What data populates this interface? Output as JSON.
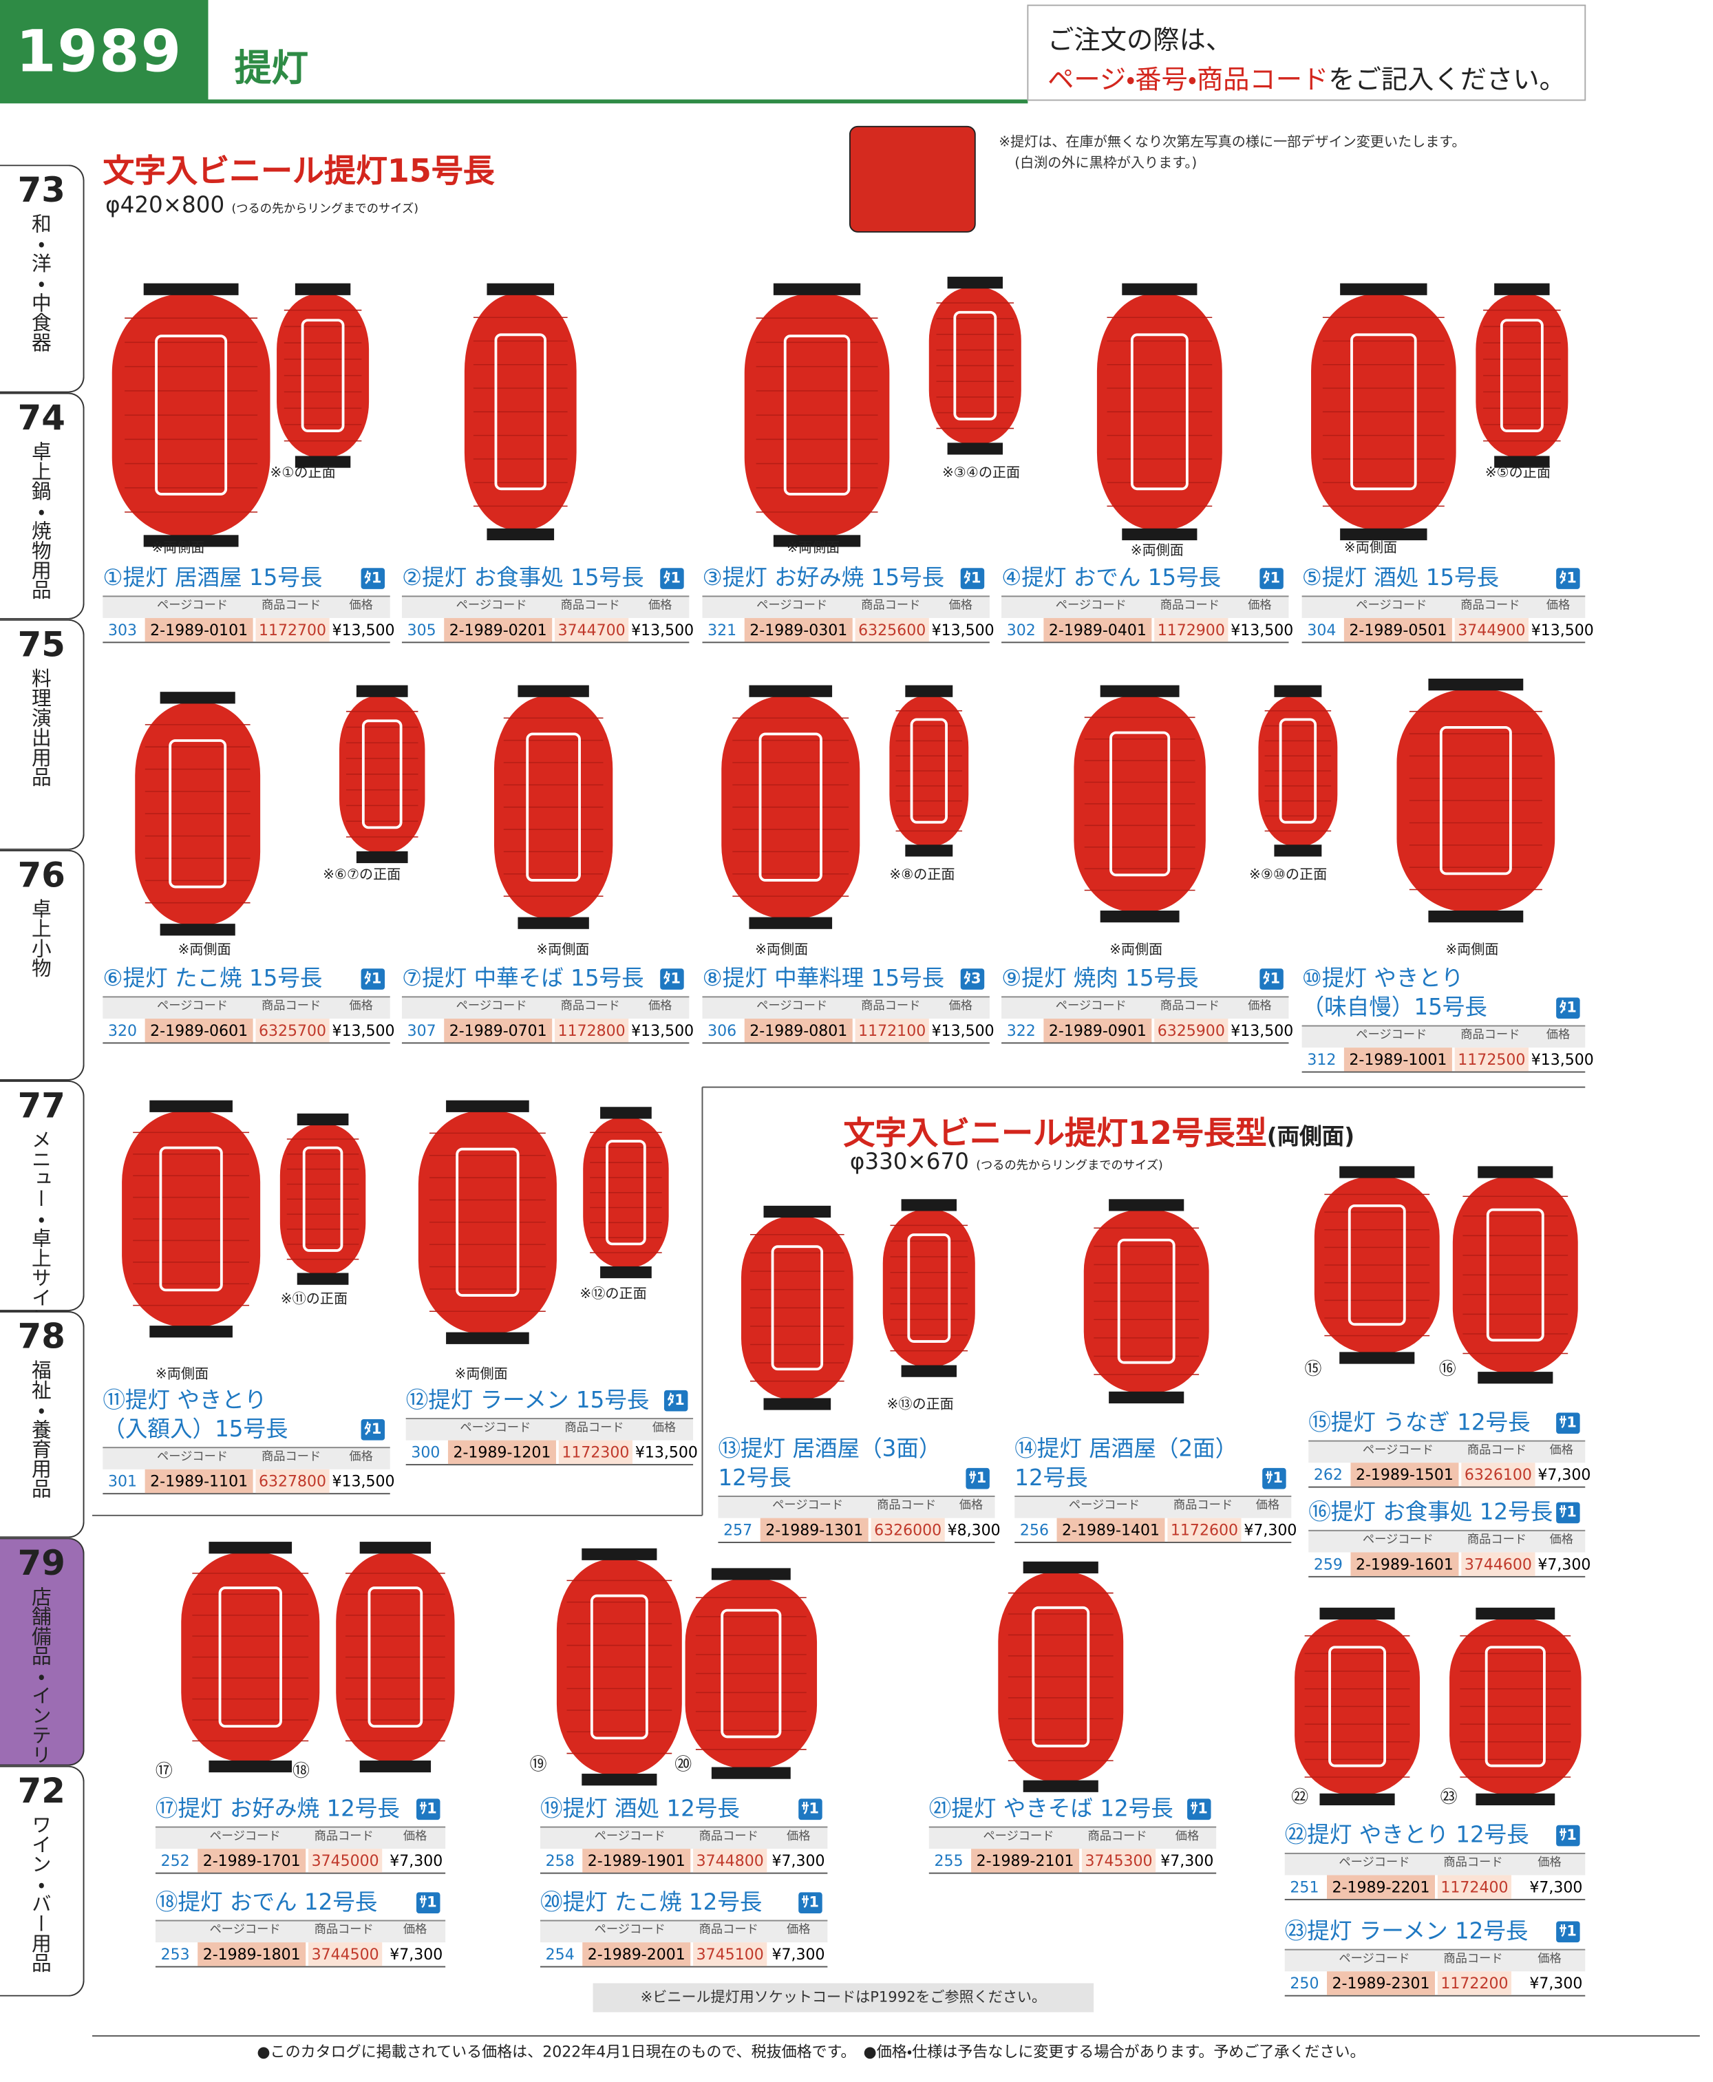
{
  "header": {
    "page_number": "1989",
    "title": "提灯",
    "notice_line1": "ご注文の際は、",
    "notice_emphasis": "ページ・番号・商品コード",
    "notice_rest": "をご記入ください。"
  },
  "side_tabs": [
    {
      "number": "73",
      "label": "和・洋・中食器"
    },
    {
      "number": "74",
      "label": "卓上鍋・焼物用品"
    },
    {
      "number": "75",
      "label": "料理演出用品"
    },
    {
      "number": "76",
      "label": "卓上小物"
    },
    {
      "number": "77",
      "label": "メニュー・卓上サイン"
    },
    {
      "number": "78",
      "label": "福祉・養育用品"
    },
    {
      "number": "79",
      "label": "店舗備品・インテリア"
    },
    {
      "number": "72",
      "label": "ワイン・バー用品"
    }
  ],
  "section1": {
    "title": "文字入ビニール提灯15号長",
    "size": "φ420×800",
    "size_note": "(つるの先からリングまでのサイズ)",
    "note_line1": "※提灯は、在庫が無くなり次第左写真の様に一部デザイン変更いたします。",
    "note_line2": "(白渕の外に黒枠が入ります。)"
  },
  "section2": {
    "title": "文字入ビニール提灯12号長型",
    "title_suffix": "(両側面)",
    "size": "φ330×670",
    "size_note": "(つるの先からリングまでのサイズ)"
  },
  "table_headers": [
    "ページコード",
    "商品コード",
    "価格"
  ],
  "products": [
    {
      "name": [
        "①提灯 居酒屋 15号長"
      ],
      "badge": "ﾀ1",
      "page": "303",
      "code": "2-1989-0101",
      "product_code": "1172700",
      "price": "¥13,500",
      "notes": [
        "※両側面",
        "※①の正面"
      ]
    },
    {
      "name": [
        "②提灯 お食事処 15号長"
      ],
      "badge": "ﾀ1",
      "page": "305",
      "code": "2-1989-0201",
      "product_code": "3744700",
      "price": "¥13,500",
      "notes": []
    },
    {
      "name": [
        "③提灯 お好み焼 15号長"
      ],
      "badge": "ﾀ1",
      "page": "321",
      "code": "2-1989-0301",
      "product_code": "6325600",
      "price": "¥13,500",
      "notes": [
        "※両側面",
        "※③④の正面"
      ]
    },
    {
      "name": [
        "④提灯 おでん 15号長"
      ],
      "badge": "ﾀ1",
      "page": "302",
      "code": "2-1989-0401",
      "product_code": "1172900",
      "price": "¥13,500",
      "notes": [
        "※両側面"
      ]
    },
    {
      "name": [
        "⑤提灯 酒処 15号長"
      ],
      "badge": "ﾀ1",
      "page": "304",
      "code": "2-1989-0501",
      "product_code": "3744900",
      "price": "¥13,500",
      "notes": [
        "※両側面",
        "※⑤の正面"
      ]
    },
    {
      "name": [
        "⑥提灯 たこ焼 15号長"
      ],
      "badge": "ﾀ1",
      "page": "320",
      "code": "2-1989-0601",
      "product_code": "6325700",
      "price": "¥13,500",
      "notes": [
        "※両側面",
        "※⑥⑦の正面"
      ]
    },
    {
      "name": [
        "⑦提灯 中華そば 15号長"
      ],
      "badge": "ﾀ1",
      "page": "307",
      "code": "2-1989-0701",
      "product_code": "1172800",
      "price": "¥13,500",
      "notes": [
        "※両側面"
      ]
    },
    {
      "name": [
        "⑧提灯 中華料理 15号長"
      ],
      "badge": "ﾀ3",
      "page": "306",
      "code": "2-1989-0801",
      "product_code": "1172100",
      "price": "¥13,500",
      "notes": [
        "※両側面",
        "※⑧の正面"
      ]
    },
    {
      "name": [
        "⑨提灯 焼肉 15号長"
      ],
      "badge": "ﾀ1",
      "page": "322",
      "code": "2-1989-0901",
      "product_code": "6325900",
      "price": "¥13,500",
      "notes": [
        "※両側面",
        "※⑨⑩の正面"
      ]
    },
    {
      "name": [
        "⑩提灯 やきとり",
        "（味自慢）15号長"
      ],
      "badge": "ﾀ1",
      "page": "312",
      "code": "2-1989-1001",
      "product_code": "1172500",
      "price": "¥13,500",
      "notes": [
        "※両側面"
      ]
    },
    {
      "name": [
        "⑪提灯 やきとり",
        "（入額入）15号長"
      ],
      "badge": "ﾀ1",
      "page": "301",
      "code": "2-1989-1101",
      "product_code": "6327800",
      "price": "¥13,500",
      "notes": [
        "※両側面",
        "※⑪の正面"
      ]
    },
    {
      "name": [
        "⑫提灯 ラーメン 15号長"
      ],
      "badge": "ﾀ1",
      "page": "300",
      "code": "2-1989-1201",
      "product_code": "1172300",
      "price": "¥13,500",
      "notes": [
        "※両側面",
        "※⑫の正面"
      ]
    },
    {
      "name": [
        "⑬提灯 居酒屋（3面）",
        "12号長"
      ],
      "badge": "ｻ1",
      "page": "257",
      "code": "2-1989-1301",
      "product_code": "6326000",
      "price": "¥8,300",
      "notes": [
        "※⑬の正面"
      ]
    },
    {
      "name": [
        "⑭提灯 居酒屋（2面）",
        "12号長"
      ],
      "badge": "ｻ1",
      "page": "256",
      "code": "2-1989-1401",
      "product_code": "1172600",
      "price": "¥7,300",
      "notes": []
    },
    {
      "name": [
        "⑮提灯 うなぎ 12号長"
      ],
      "badge": "ｻ1",
      "page": "262",
      "code": "2-1989-1501",
      "product_code": "6326100",
      "price": "¥7,300",
      "notes": [],
      "photo_label": "⑮"
    },
    {
      "name": [
        "⑯提灯 お食事処 12号長"
      ],
      "badge": "ｻ1",
      "page": "259",
      "code": "2-1989-1601",
      "product_code": "3744600",
      "price": "¥7,300",
      "notes": [],
      "photo_label": "⑯"
    },
    {
      "name": [
        "⑰提灯 お好み焼 12号長"
      ],
      "badge": "ｻ1",
      "page": "252",
      "code": "2-1989-1701",
      "product_code": "3745000",
      "price": "¥7,300",
      "notes": [],
      "photo_label": "⑰"
    },
    {
      "name": [
        "⑱提灯 おでん 12号長"
      ],
      "badge": "ｻ1",
      "page": "253",
      "code": "2-1989-1801",
      "product_code": "3744500",
      "price": "¥7,300",
      "notes": [],
      "photo_label": "⑱"
    },
    {
      "name": [
        "⑲提灯 酒処 12号長"
      ],
      "badge": "ｻ1",
      "page": "258",
      "code": "2-1989-1901",
      "product_code": "3744800",
      "price": "¥7,300",
      "notes": [],
      "photo_label": "⑲"
    },
    {
      "name": [
        "⑳提灯 たこ焼 12号長"
      ],
      "badge": "ｻ1",
      "page": "254",
      "code": "2-1989-2001",
      "product_code": "3745100",
      "price": "¥7,300",
      "notes": [],
      "photo_label": "⑳"
    },
    {
      "name": [
        "㉑提灯 やきそば 12号長"
      ],
      "badge": "ｻ1",
      "page": "255",
      "code": "2-1989-2101",
      "product_code": "3745300",
      "price": "¥7,300",
      "notes": []
    },
    {
      "name": [
        "㉒提灯 やきとり 12号長"
      ],
      "badge": "ｻ1",
      "page": "251",
      "code": "2-1989-2201",
      "product_code": "1172400",
      "price": "¥7,300",
      "notes": [],
      "photo_label": "㉒"
    },
    {
      "name": [
        "㉓提灯 ラーメン 12号長"
      ],
      "badge": "ｻ1",
      "page": "250",
      "code": "2-1989-2301",
      "product_code": "1172200",
      "price": "¥7,300",
      "notes": [],
      "photo_label": "㉓"
    }
  ],
  "footer": {
    "socket_note": "※ビニール提灯用ソケットコードはP1992をご参照ください。",
    "disclaimer": "●このカタログに掲載されている価格は、2022年4月1日現在のもので、税抜価格です。　●価格・仕様は予告なしに変更する場合があります。予めご了承ください。"
  }
}
